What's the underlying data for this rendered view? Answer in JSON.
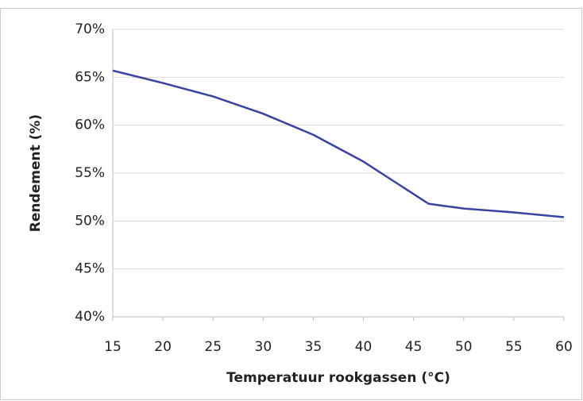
{
  "chart_data": {
    "type": "line",
    "x_label": "Temperatuur rookgassen (°C)",
    "y_label": "Rendement (%)",
    "x": [
      15,
      20,
      25,
      30,
      35,
      40,
      46.5,
      50,
      55,
      60
    ],
    "series": [
      {
        "name": "Rendement",
        "color": "#3a43a0",
        "values": [
          65.7,
          64.4,
          63.0,
          61.2,
          59.0,
          56.2,
          51.8,
          51.3,
          50.9,
          50.4
        ]
      }
    ],
    "xlim": [
      15,
      60
    ],
    "xticks": [
      15,
      20,
      25,
      30,
      35,
      40,
      45,
      50,
      55,
      60
    ],
    "ylim": [
      40,
      70
    ],
    "yticks": [
      {
        "value": 40,
        "label": "40%"
      },
      {
        "value": 45,
        "label": "45%"
      },
      {
        "value": 50,
        "label": "50%"
      },
      {
        "value": 55,
        "label": "55%"
      },
      {
        "value": 60,
        "label": "60%"
      },
      {
        "value": 65,
        "label": "65%"
      },
      {
        "value": 70,
        "label": "70%"
      }
    ],
    "grid": true
  }
}
